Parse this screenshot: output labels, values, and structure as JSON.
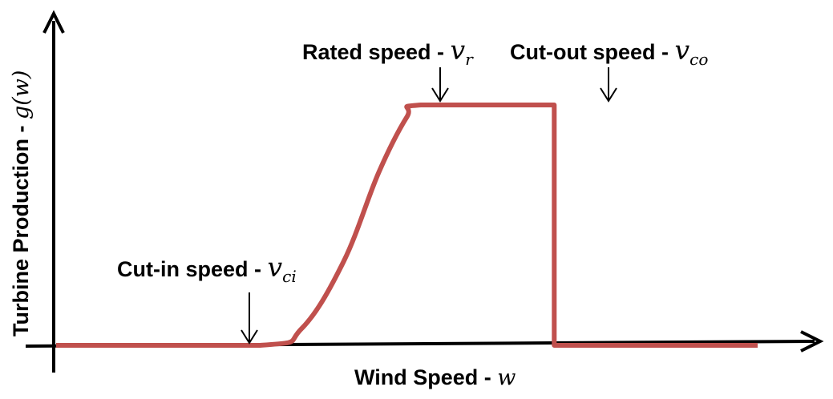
{
  "chart_data": {
    "type": "line",
    "xlabel": "Wind Speed - ",
    "xlabel_symbol": "w",
    "ylabel": "Turbine Production - ",
    "ylabel_symbol": "g(w)",
    "grid": false,
    "legend": "none",
    "series": [
      {
        "x": [
          0,
          0.29,
          0.35,
          0.41,
          0.46,
          0.5,
          0.52,
          0.71,
          0.71,
          1.0
        ],
        "y": [
          0,
          0,
          0.07,
          0.35,
          0.72,
          0.95,
          1.0,
          1.0,
          0,
          0
        ]
      }
    ],
    "annotations": [
      {
        "id": "cut_in",
        "label": "Cut-in speed - ",
        "symbol": "v",
        "subscript": "ci",
        "x": 0.29,
        "y": 0
      },
      {
        "id": "rated",
        "label": "Rated speed - ",
        "symbol": "v",
        "subscript": "r",
        "x": 0.52,
        "y": 1.0
      },
      {
        "id": "cut_out",
        "label": "Cut-out speed - ",
        "symbol": "v",
        "subscript": "co",
        "x": 0.71,
        "y": 1.0
      }
    ],
    "colors": {
      "curve": "#c0504d",
      "axes": "#000000"
    }
  }
}
